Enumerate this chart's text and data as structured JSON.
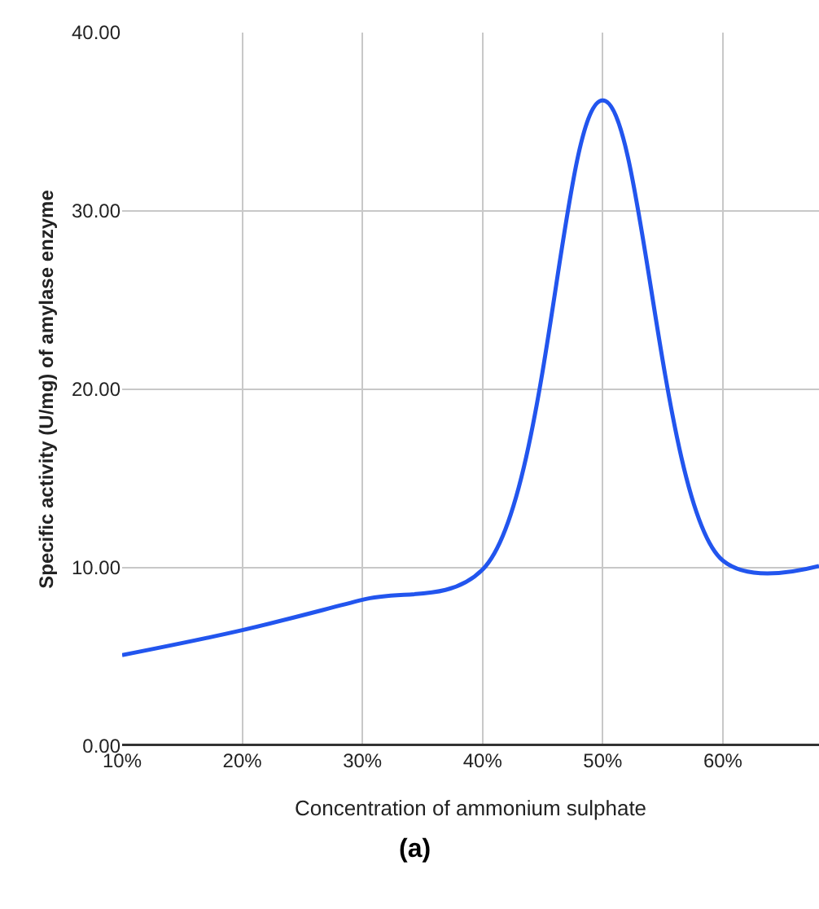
{
  "chart_data": {
    "type": "line",
    "xlabel": "Concentration of ammonium sulphate",
    "ylabel": "Specific activity (U/mg) of amylase enzyme",
    "annotations": [
      "(a)"
    ],
    "x": [
      10,
      20,
      30,
      40,
      50,
      60,
      68
    ],
    "series": [
      {
        "color": "#2255ee",
        "values": [
          5.1,
          6.5,
          8.2,
          9.9,
          36.2,
          10.4,
          10.1
        ]
      }
    ],
    "xlim": [
      10,
      68
    ],
    "xticks": [
      {
        "value": 10,
        "label": "10%"
      },
      {
        "value": 20,
        "label": "20%"
      },
      {
        "value": 30,
        "label": "30%"
      },
      {
        "value": 40,
        "label": "40%"
      },
      {
        "value": 50,
        "label": "50%"
      },
      {
        "value": 60,
        "label": "60%"
      }
    ],
    "ylim": [
      0,
      40
    ],
    "yticks": [
      {
        "value": 0,
        "label": "0.00"
      },
      {
        "value": 10,
        "label": "10.00"
      },
      {
        "value": 20,
        "label": "20.00"
      },
      {
        "value": 30,
        "label": "30.00"
      },
      {
        "value": 40,
        "label": "40.00"
      }
    ],
    "grid": true,
    "marker": "none",
    "line_style": "solid"
  }
}
